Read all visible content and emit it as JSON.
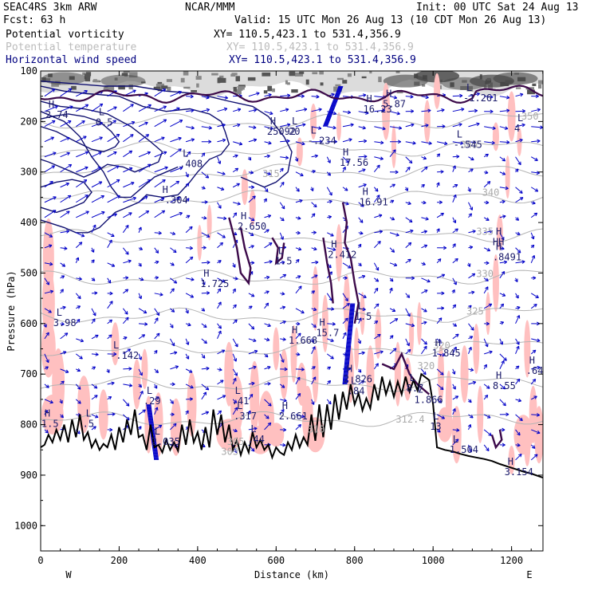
{
  "header": {
    "title_left": "SEAC4RS  3km ARW",
    "title_center": "NCAR/MMM",
    "init": "Init: 00 UTC Sat 24 Aug 13",
    "fcst": "Fcst:   63 h",
    "valid": "Valid: 15 UTC Mon 26 Aug 13 (10 CDT Mon 26 Aug 13)",
    "fields": [
      {
        "name": "Potential vorticity",
        "xy": "XY= 110.5,423.1 to 531.4,356.9",
        "color": "#000000"
      },
      {
        "name": "Potential temperature",
        "xy": "XY= 110.5,423.1 to 531.4,356.9",
        "color": "#bbbbbb"
      },
      {
        "name": "Horizontal wind speed",
        "xy": "XY= 110.5,423.1 to 531.4,356.9",
        "color": "#000080"
      }
    ]
  },
  "chart_data": {
    "type": "cross-section",
    "xlabel": "Distance (km)",
    "ylabel": "Pressure (hPa)",
    "xlim": [
      0,
      1280
    ],
    "ylim": [
      1050,
      100
    ],
    "x_ticks": [
      0,
      200,
      400,
      600,
      800,
      1000,
      1200
    ],
    "y_ticks": [
      100,
      200,
      300,
      400,
      500,
      600,
      700,
      800,
      900,
      1000
    ],
    "x_endpoints": {
      "left": "W",
      "right": "E"
    },
    "colors": {
      "pv_fill": "#ffc0c0",
      "pv_contour": "#3c0a4a",
      "theta_contour": "#b4b4b4",
      "wind_contour": "#101070",
      "wind_vector": "#0000c8",
      "terrain": "#000000"
    },
    "theta_labels": [
      {
        "text": "350",
        "x": 1225,
        "p": 196
      },
      {
        "text": "345",
        "x": 1070,
        "p": 252
      },
      {
        "text": "340",
        "x": 1125,
        "p": 347
      },
      {
        "text": "335",
        "x": 1110,
        "p": 424
      },
      {
        "text": "330",
        "x": 1110,
        "p": 508
      },
      {
        "text": "325",
        "x": 1085,
        "p": 582
      },
      {
        "text": "320",
        "x": 1000,
        "p": 650
      },
      {
        "text": "320",
        "x": 960,
        "p": 690
      },
      {
        "text": "315",
        "x": 565,
        "p": 310
      },
      {
        "text": "312.4",
        "x": 905,
        "p": 796
      },
      {
        "text": "303",
        "x": 460,
        "p": 860
      },
      {
        "text": "305",
        "x": 475,
        "p": 840
      },
      {
        "text": "310",
        "x": 680,
        "p": 816
      }
    ],
    "extrema": [
      {
        "kind": "H",
        "value": "2.74",
        "x": 20,
        "p": 193
      },
      {
        "kind": "L",
        "value": "0.5",
        "x": 148,
        "p": 208
      },
      {
        "kind": "H",
        "value": "-.304",
        "x": 310,
        "p": 362
      },
      {
        "kind": "L",
        "value": ".408",
        "x": 362,
        "p": 290
      },
      {
        "kind": "H",
        "value": "2.650",
        "x": 510,
        "p": 414
      },
      {
        "kind": "H",
        "value": "1.725",
        "x": 415,
        "p": 528
      },
      {
        "kind": "H",
        "value": "25092",
        "x": 585,
        "p": 226
      },
      {
        "kind": "L",
        "value": "20",
        "x": 640,
        "p": 226
      },
      {
        "kind": "L",
        "value": "-.234",
        "x": 688,
        "p": 244
      },
      {
        "kind": "H",
        "value": "17.56",
        "x": 770,
        "p": 288
      },
      {
        "kind": "H",
        "value": "16.23",
        "x": 830,
        "p": 182
      },
      {
        "kind": "H",
        "value": "5.87",
        "x": 880,
        "p": 172
      },
      {
        "kind": "L",
        "value": "-1.261",
        "x": 1085,
        "p": 160
      },
      {
        "kind": "L",
        "value": "4",
        "x": 1215,
        "p": 220
      },
      {
        "kind": "L",
        "value": "-.545",
        "x": 1060,
        "p": 252
      },
      {
        "kind": "H",
        "value": "16.91",
        "x": 820,
        "p": 366
      },
      {
        "kind": "H",
        "value": "2.412",
        "x": 740,
        "p": 470
      },
      {
        "kind": "L",
        "value": "1.5",
        "x": 605,
        "p": 483
      },
      {
        "kind": "H",
        "value": "HH",
        "x": 1160,
        "p": 445
      },
      {
        "kind": "H",
        "value": ".8491",
        "x": 1160,
        "p": 475
      },
      {
        "kind": "L",
        "value": "3.98",
        "x": 40,
        "p": 605
      },
      {
        "kind": "L",
        "value": "-.142",
        "x": 185,
        "p": 670
      },
      {
        "kind": "H",
        "value": "1.668",
        "x": 640,
        "p": 640
      },
      {
        "kind": "H",
        "value": "15.7",
        "x": 710,
        "p": 625
      },
      {
        "kind": "L",
        "value": "1.5",
        "x": 808,
        "p": 592
      },
      {
        "kind": "H",
        "value": "1.845",
        "x": 1005,
        "p": 665
      },
      {
        "kind": "H",
        "value": "8.55",
        "x": 1160,
        "p": 730
      },
      {
        "kind": "H",
        "value": ".64",
        "x": 1245,
        "p": 700
      },
      {
        "kind": "H",
        "value": "2.826",
        "x": 780,
        "p": 716
      },
      {
        "kind": "L",
        "value": ".84",
        "x": 790,
        "p": 740
      },
      {
        "kind": "L",
        "value": "8.7",
        "x": 940,
        "p": 734
      },
      {
        "kind": "L",
        "value": "1.866",
        "x": 960,
        "p": 757
      },
      {
        "kind": "L",
        "value": ".29",
        "x": 270,
        "p": 760
      },
      {
        "kind": "L",
        "value": ".41",
        "x": 495,
        "p": 760
      },
      {
        "kind": "L",
        "value": ".317",
        "x": 500,
        "p": 790
      },
      {
        "kind": "H",
        "value": "2.661",
        "x": 615,
        "p": 790
      },
      {
        "kind": "H",
        "value": "1.5",
        "x": 10,
        "p": 805
      },
      {
        "kind": "L",
        "value": ".5",
        "x": 115,
        "p": 805
      },
      {
        "kind": "L",
        "value": "2.035",
        "x": 290,
        "p": 840
      },
      {
        "kind": "L",
        "value": ".44",
        "x": 535,
        "p": 835
      },
      {
        "kind": "L",
        "value": "1.504",
        "x": 1050,
        "p": 856
      },
      {
        "kind": "H",
        "value": "3.154",
        "x": 1190,
        "p": 900
      },
      {
        "kind": "L",
        "value": "13",
        "x": 1000,
        "p": 810
      }
    ]
  }
}
